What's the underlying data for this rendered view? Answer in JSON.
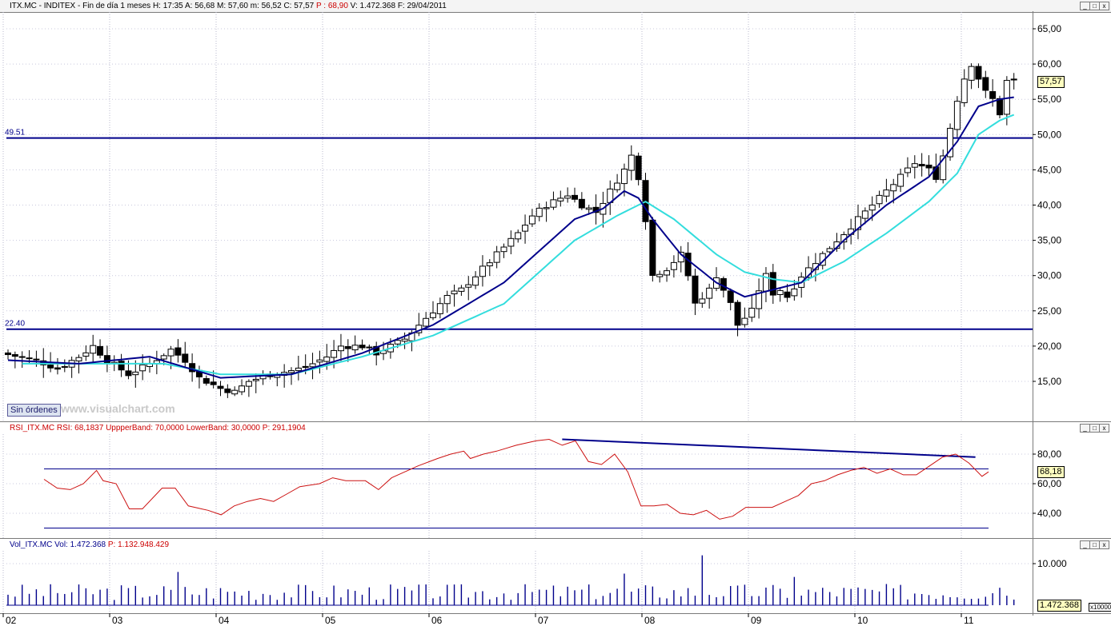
{
  "header": {
    "symbol": "ITX.MC - INDITEX - Fin de día 1 meses",
    "h_label": "H:",
    "h_value": "17:35",
    "a_label": "A:",
    "a_value": "56,68",
    "m_label": "M:",
    "m_value": "57,60",
    "mm_label": "m:",
    "mm_value": "56,52",
    "c_label": "C:",
    "c_value": "57,57",
    "p_label": "P :",
    "p_value": "68,90",
    "v_label": "V:",
    "v_value": "1.472.368",
    "f_label": "F:",
    "f_value": "29/04/2011"
  },
  "window_controls": {
    "minimize": "_",
    "restore": "□",
    "close": "x"
  },
  "price_panel": {
    "support_label": "49.51",
    "lower_label": "22.40",
    "current_value": "57,57",
    "sin_ordenes": "Sin órdenes",
    "watermark": "www.visualchart.com"
  },
  "rsi_panel": {
    "title_name": "RSI_ITX.MC",
    "title_rsi": "RSI: 68,1837",
    "title_upper": "UppperBand: 70,0000",
    "title_lower": "LowerBand: 30,0000",
    "title_p": "P: 291,1904",
    "current_value": "68,18"
  },
  "vol_panel": {
    "title_name": "Vol_ITX.MC",
    "title_vol": "Vol: 1.472.368",
    "title_p": "P: 1.132.948.429",
    "current_value": "1.472.368",
    "multiplier": "x10000"
  },
  "colors": {
    "frame": "#7a7a7a",
    "grid": "#8888aa",
    "ma_fast": "#00008b",
    "ma_slow": "#33dddd",
    "hline": "#00008b",
    "rsi": "#cc1111",
    "volume": "#00008b",
    "red_text": "#cc0000"
  },
  "chart_data": [
    {
      "type": "candlestick",
      "title": "ITX.MC - INDITEX - Fin de día 1 meses",
      "x_labels": [
        "02",
        "03",
        "04",
        "05",
        "06",
        "07",
        "08",
        "09",
        "10",
        "11"
      ],
      "y_ticks": [
        "15,00",
        "20,00",
        "25,00",
        "30,00",
        "35,00",
        "40,00",
        "45,00",
        "50,00",
        "55,00",
        "60,00",
        "65,00"
      ],
      "ylim": [
        10,
        66
      ],
      "hlines": [
        49.51,
        22.4
      ],
      "anchors": [
        [
          0,
          19
        ],
        [
          5,
          18
        ],
        [
          8,
          16.8
        ],
        [
          11,
          18.5
        ],
        [
          13,
          20
        ],
        [
          15,
          18
        ],
        [
          18,
          16
        ],
        [
          21,
          17.5
        ],
        [
          24,
          19.5
        ],
        [
          26,
          18
        ],
        [
          28,
          15.5
        ],
        [
          31,
          14
        ],
        [
          33,
          13.5
        ],
        [
          35,
          15
        ],
        [
          38,
          16
        ],
        [
          41,
          16.5
        ],
        [
          43,
          17
        ],
        [
          46,
          18.5
        ],
        [
          48,
          20
        ],
        [
          51,
          20
        ],
        [
          53,
          19
        ],
        [
          55,
          20
        ],
        [
          57,
          21
        ],
        [
          59,
          23
        ],
        [
          61,
          25
        ],
        [
          63,
          27
        ],
        [
          65,
          28
        ],
        [
          67,
          30
        ],
        [
          70,
          33
        ],
        [
          73,
          36
        ],
        [
          75,
          38.5
        ],
        [
          77,
          40
        ],
        [
          80,
          41.5
        ],
        [
          82,
          40
        ],
        [
          84,
          39
        ],
        [
          86,
          42
        ],
        [
          88,
          45
        ],
        [
          89,
          47
        ],
        [
          90,
          44
        ],
        [
          91,
          38
        ],
        [
          92,
          30
        ],
        [
          94,
          31
        ],
        [
          96,
          33
        ],
        [
          97,
          30
        ],
        [
          98,
          26
        ],
        [
          100,
          28
        ],
        [
          101,
          30
        ],
        [
          102,
          28
        ],
        [
          103,
          26
        ],
        [
          104,
          23
        ],
        [
          106,
          25
        ],
        [
          107,
          28
        ],
        [
          108,
          30
        ],
        [
          109,
          27.5
        ],
        [
          110,
          28
        ],
        [
          111,
          27
        ],
        [
          113,
          30
        ],
        [
          115,
          32
        ],
        [
          117,
          34
        ],
        [
          119,
          36
        ],
        [
          121,
          38
        ],
        [
          123,
          40
        ],
        [
          125,
          42
        ],
        [
          127,
          44
        ],
        [
          129,
          46
        ],
        [
          131,
          45
        ],
        [
          132,
          44
        ],
        [
          133,
          47
        ],
        [
          134,
          51
        ],
        [
          135,
          55
        ],
        [
          136,
          58
        ],
        [
          137,
          60
        ],
        [
          138,
          58
        ],
        [
          139,
          56
        ],
        [
          140,
          55
        ],
        [
          141,
          53
        ],
        [
          142,
          57.57
        ]
      ],
      "n_bars": 143,
      "ma_fast": [
        [
          0,
          18
        ],
        [
          10,
          17.5
        ],
        [
          20,
          18.5
        ],
        [
          30,
          15.5
        ],
        [
          40,
          16
        ],
        [
          50,
          19
        ],
        [
          60,
          23
        ],
        [
          70,
          29
        ],
        [
          80,
          38
        ],
        [
          84,
          39.5
        ],
        [
          87,
          42
        ],
        [
          89,
          41
        ],
        [
          91,
          38
        ],
        [
          95,
          33
        ],
        [
          100,
          29
        ],
        [
          104,
          27
        ],
        [
          108,
          28
        ],
        [
          112,
          29
        ],
        [
          118,
          35
        ],
        [
          124,
          40
        ],
        [
          130,
          44
        ],
        [
          134,
          49
        ],
        [
          137,
          54
        ],
        [
          140,
          55
        ],
        [
          142,
          55.3
        ]
      ],
      "ma_slow": [
        [
          2,
          17.5
        ],
        [
          12,
          17.5
        ],
        [
          22,
          17.5
        ],
        [
          30,
          16
        ],
        [
          40,
          16
        ],
        [
          50,
          18.5
        ],
        [
          60,
          21.5
        ],
        [
          70,
          26
        ],
        [
          80,
          35
        ],
        [
          86,
          38.5
        ],
        [
          90,
          40.5
        ],
        [
          94,
          38
        ],
        [
          100,
          33
        ],
        [
          104,
          30.5
        ],
        [
          108,
          29.5
        ],
        [
          112,
          29
        ],
        [
          118,
          32
        ],
        [
          124,
          36
        ],
        [
          130,
          40.5
        ],
        [
          134,
          44.5
        ],
        [
          137,
          50
        ],
        [
          140,
          52
        ],
        [
          142,
          52.8
        ]
      ]
    },
    {
      "type": "line",
      "title": "RSI_ITX.MC",
      "y_ticks": [
        "40,00",
        "60,00",
        "80,00"
      ],
      "ylim": [
        30,
        95
      ],
      "bands": [
        70,
        30
      ],
      "trendline": [
        [
          85,
          90
        ],
        [
          148,
          78
        ]
      ],
      "values": [
        [
          6,
          63
        ],
        [
          8,
          57
        ],
        [
          10,
          56
        ],
        [
          12,
          60
        ],
        [
          14,
          69
        ],
        [
          15,
          62
        ],
        [
          17,
          60
        ],
        [
          19,
          43
        ],
        [
          21,
          43
        ],
        [
          24,
          57
        ],
        [
          26,
          57
        ],
        [
          28,
          45
        ],
        [
          31,
          42
        ],
        [
          33,
          39
        ],
        [
          35,
          45
        ],
        [
          37,
          48
        ],
        [
          39,
          50
        ],
        [
          41,
          48
        ],
        [
          43,
          53
        ],
        [
          45,
          58
        ],
        [
          48,
          60
        ],
        [
          50,
          64
        ],
        [
          52,
          62
        ],
        [
          55,
          62
        ],
        [
          57,
          56
        ],
        [
          59,
          64
        ],
        [
          61,
          68
        ],
        [
          63,
          72
        ],
        [
          66,
          77
        ],
        [
          68,
          80
        ],
        [
          70,
          82
        ],
        [
          71,
          77
        ],
        [
          73,
          80
        ],
        [
          75,
          82
        ],
        [
          78,
          86
        ],
        [
          81,
          89
        ],
        [
          83,
          90
        ],
        [
          85,
          86
        ],
        [
          87,
          89
        ],
        [
          89,
          75
        ],
        [
          91,
          73
        ],
        [
          93,
          80
        ],
        [
          95,
          68
        ],
        [
          97,
          45
        ],
        [
          99,
          45
        ],
        [
          101,
          46
        ],
        [
          103,
          40
        ],
        [
          105,
          39
        ],
        [
          107,
          42
        ],
        [
          109,
          36
        ],
        [
          111,
          38
        ],
        [
          113,
          44
        ],
        [
          115,
          44
        ],
        [
          117,
          44
        ],
        [
          119,
          48
        ],
        [
          121,
          52
        ],
        [
          123,
          60
        ],
        [
          125,
          62
        ],
        [
          127,
          66
        ],
        [
          129,
          69
        ],
        [
          131,
          71
        ],
        [
          133,
          67
        ],
        [
          135,
          70
        ],
        [
          137,
          66
        ],
        [
          139,
          66
        ],
        [
          141,
          72
        ],
        [
          143,
          78
        ],
        [
          145,
          80
        ],
        [
          147,
          74
        ],
        [
          149,
          65
        ],
        [
          150,
          68
        ]
      ]
    },
    {
      "type": "bar",
      "title": "Vol_ITX.MC",
      "y_ticks": [
        "10.000"
      ],
      "ylim": [
        0,
        13000
      ],
      "seed_vol": 0.35,
      "peak_bars": [
        [
          24,
          8000
        ],
        [
          98,
          12000
        ],
        [
          87,
          7600
        ],
        [
          111,
          6800
        ],
        [
          140,
          4200
        ]
      ]
    }
  ]
}
